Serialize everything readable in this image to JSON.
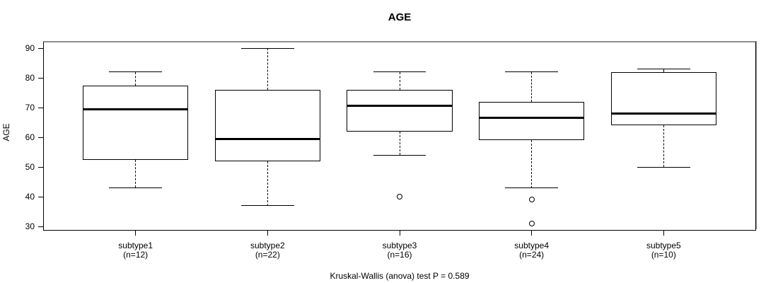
{
  "chart_data": {
    "type": "boxplot",
    "title": "AGE",
    "ylabel": "AGE",
    "xlabel": "",
    "ylim": [
      28.6,
      92.4
    ],
    "yticks": [
      30,
      40,
      50,
      60,
      70,
      80,
      90
    ],
    "grid": false,
    "annotation": "Kruskal-Wallis (anova) test P = 0.589",
    "groups": [
      {
        "label": "subtype1",
        "sublabel": "(n=12)",
        "whisker_low": 43,
        "q1": 52.5,
        "median": 69.5,
        "q3": 77.5,
        "whisker_high": 82,
        "outliers": []
      },
      {
        "label": "subtype2",
        "sublabel": "(n=22)",
        "whisker_low": 37,
        "q1": 52,
        "median": 59.5,
        "q3": 76,
        "whisker_high": 90,
        "outliers": []
      },
      {
        "label": "subtype3",
        "sublabel": "(n=16)",
        "whisker_low": 54,
        "q1": 62,
        "median": 70.5,
        "q3": 76,
        "whisker_high": 82,
        "outliers": [
          40
        ]
      },
      {
        "label": "subtype4",
        "sublabel": "(n=24)",
        "whisker_low": 43,
        "q1": 59,
        "median": 66.5,
        "q3": 72,
        "whisker_high": 82,
        "outliers": [
          39,
          31
        ]
      },
      {
        "label": "subtype5",
        "sublabel": "(n=10)",
        "whisker_low": 50,
        "q1": 64,
        "median": 68,
        "q3": 82,
        "whisker_high": 83,
        "outliers": []
      }
    ],
    "colors": {
      "box_border": "#000000",
      "median": "#000000",
      "frame": "#000000",
      "frame_highlight": "#8f8f8f",
      "text": "#000000",
      "background": "#ffffff"
    }
  }
}
